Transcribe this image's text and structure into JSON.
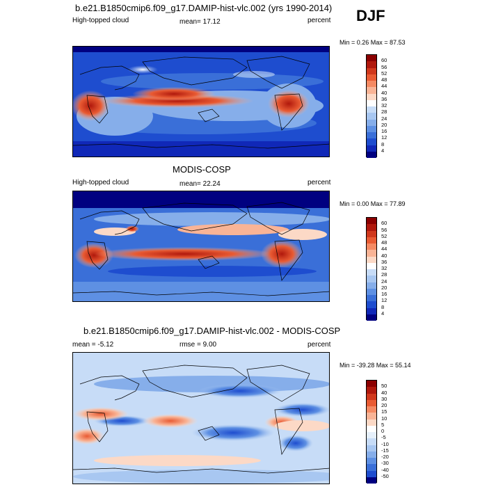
{
  "figure": {
    "season": "DJF"
  },
  "panels": [
    {
      "title": "b.e21.B1850cmip6.f09_g17.DAMIP-hist-vlc.002 (yrs 1990-2014)",
      "left_label": "High-topped cloud",
      "center_label": "mean=  17.12",
      "right_label": "percent",
      "minmax": "Min =   0.26 Max =  87.53",
      "colorbar_labels": [
        "60",
        "56",
        "52",
        "48",
        "44",
        "40",
        "36",
        "32",
        "28",
        "24",
        "20",
        "16",
        "12",
        "8",
        "4"
      ],
      "colorbar_colors": [
        "#8b0000",
        "#b0180c",
        "#d0381c",
        "#e95b33",
        "#f58a63",
        "#f9b496",
        "#fcd9c6",
        "#ffffff",
        "#c7dcf7",
        "#a8c7f1",
        "#86aeea",
        "#5e90e3",
        "#3a6fd8",
        "#1e4dcf",
        "#1028b8",
        "#000080"
      ]
    },
    {
      "title": "MODIS-COSP",
      "left_label": "High-topped cloud",
      "center_label": "mean=  22.24",
      "right_label": "percent",
      "minmax": "Min =   0.00 Max =  77.89",
      "colorbar_labels": [
        "60",
        "56",
        "52",
        "48",
        "44",
        "40",
        "36",
        "32",
        "28",
        "24",
        "20",
        "16",
        "12",
        "8",
        "4"
      ],
      "colorbar_colors": [
        "#8b0000",
        "#b0180c",
        "#d0381c",
        "#e95b33",
        "#f58a63",
        "#f9b496",
        "#fcd9c6",
        "#ffffff",
        "#c7dcf7",
        "#a8c7f1",
        "#86aeea",
        "#5e90e3",
        "#3a6fd8",
        "#1e4dcf",
        "#1028b8",
        "#000080"
      ]
    },
    {
      "title": "b.e21.B1850cmip6.f09_g17.DAMIP-hist-vlc.002 - MODIS-COSP",
      "left_label": "mean =  -5.12",
      "center_label": "rmse =   9.00",
      "right_label": "percent",
      "minmax": "Min = -39.28 Max =  55.14",
      "colorbar_labels": [
        "50",
        "40",
        "30",
        "20",
        "15",
        "10",
        "5",
        "0",
        "-5",
        "-10",
        "-15",
        "-20",
        "-30",
        "-40",
        "-50"
      ],
      "colorbar_colors": [
        "#8b0000",
        "#b0180c",
        "#d0381c",
        "#e95b33",
        "#f58a63",
        "#f9b496",
        "#fcd9c6",
        "#ffffff",
        "#e6f0fb",
        "#c7dcf7",
        "#a8c7f1",
        "#86aeea",
        "#5e90e3",
        "#3a6fd8",
        "#1e4dcf",
        "#000080"
      ]
    }
  ]
}
